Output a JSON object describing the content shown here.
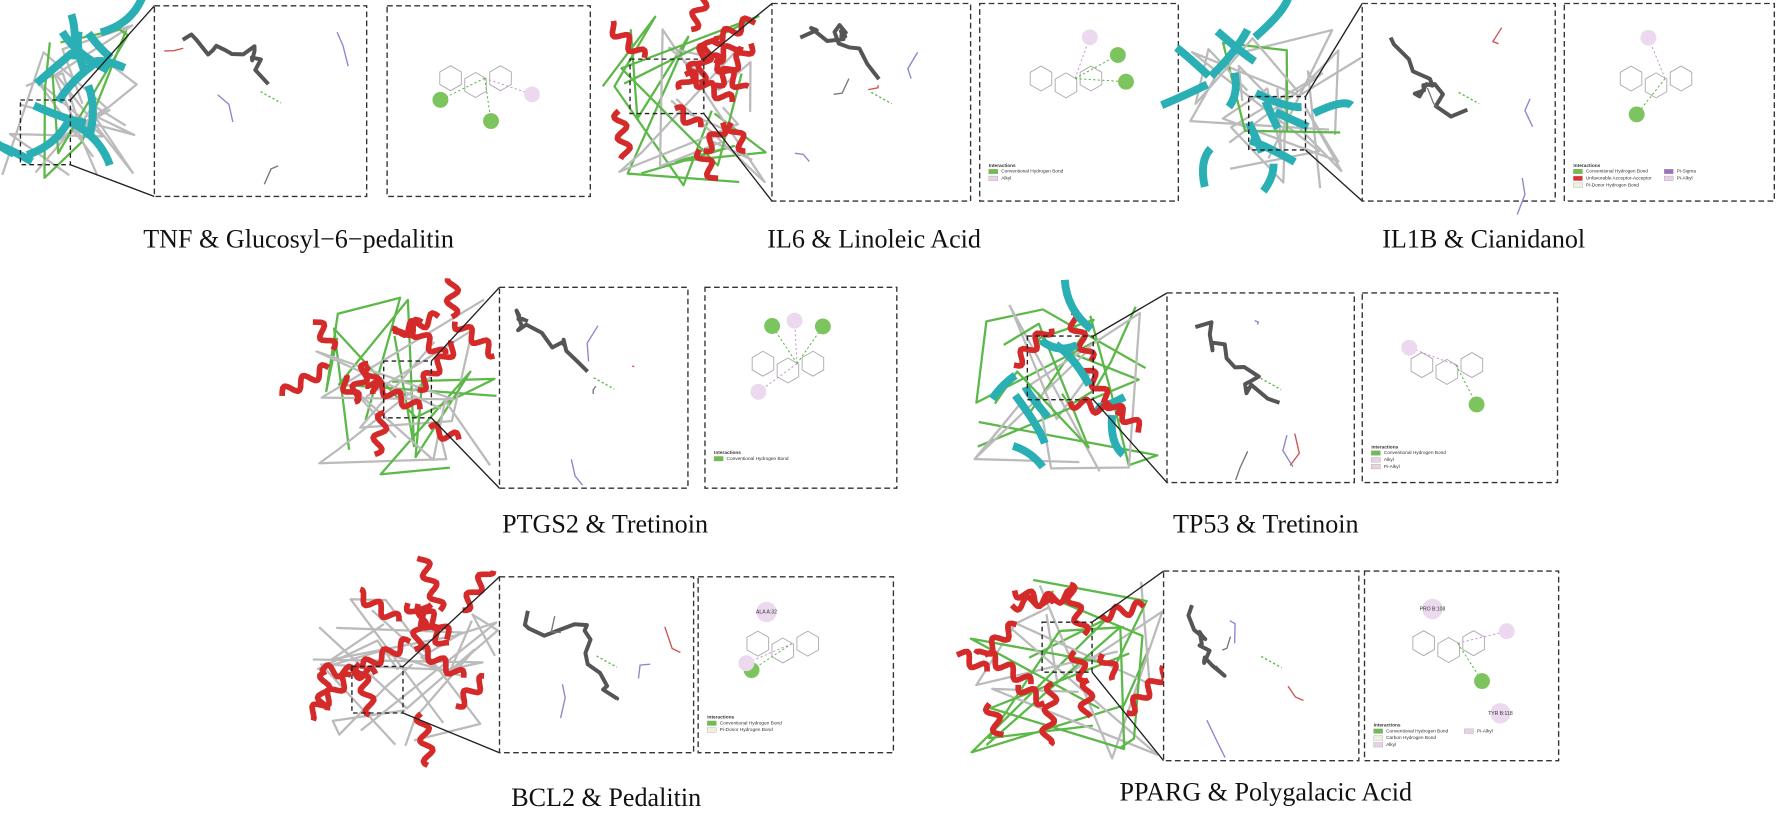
{
  "panels": [
    {
      "caption": "TNF & Glucosyl−6−pedalitin"
    },
    {
      "caption": "IL6 & Linoleic Acid",
      "legend_title": "Interactions",
      "legend": [
        "Conventional Hydrogen Bond",
        "Alkyl"
      ]
    },
    {
      "caption": "IL1B & Cianidanol",
      "legend_title": "Interactions",
      "legend": [
        "Conventional Hydrogen Bond",
        "Unfavorable Acceptor-Acceptor",
        "Pi-Donor Hydrogen Bond",
        "Pi-Sigma",
        "Pi-Alkyl"
      ]
    },
    {
      "caption": "PTGS2 & Tretinoin",
      "legend_title": "Interactions",
      "legend": [
        "Conventional Hydrogen Bond"
      ]
    },
    {
      "caption": "TP53 & Tretinoin",
      "legend_title": "Interactions",
      "legend": [
        "Conventional Hydrogen Bond",
        "Alkyl",
        "Pi-Alkyl"
      ]
    },
    {
      "caption": "BCL2 & Pedalitin",
      "legend_title": "Interactions",
      "legend": [
        "Conventional Hydrogen Bond",
        "Pi-Donor Hydrogen Bond"
      ],
      "residues": [
        "ALA A:32"
      ]
    },
    {
      "caption": "PPARG & Polygalacic Acid",
      "legend_title": "Interactions",
      "legend": [
        "Conventional Hydrogen Bond",
        "Carbon Hydrogen Bond",
        "Alkyl",
        "Pi-Alkyl"
      ],
      "residues": [
        "PRO B:108",
        "TYR B:118"
      ]
    }
  ]
}
